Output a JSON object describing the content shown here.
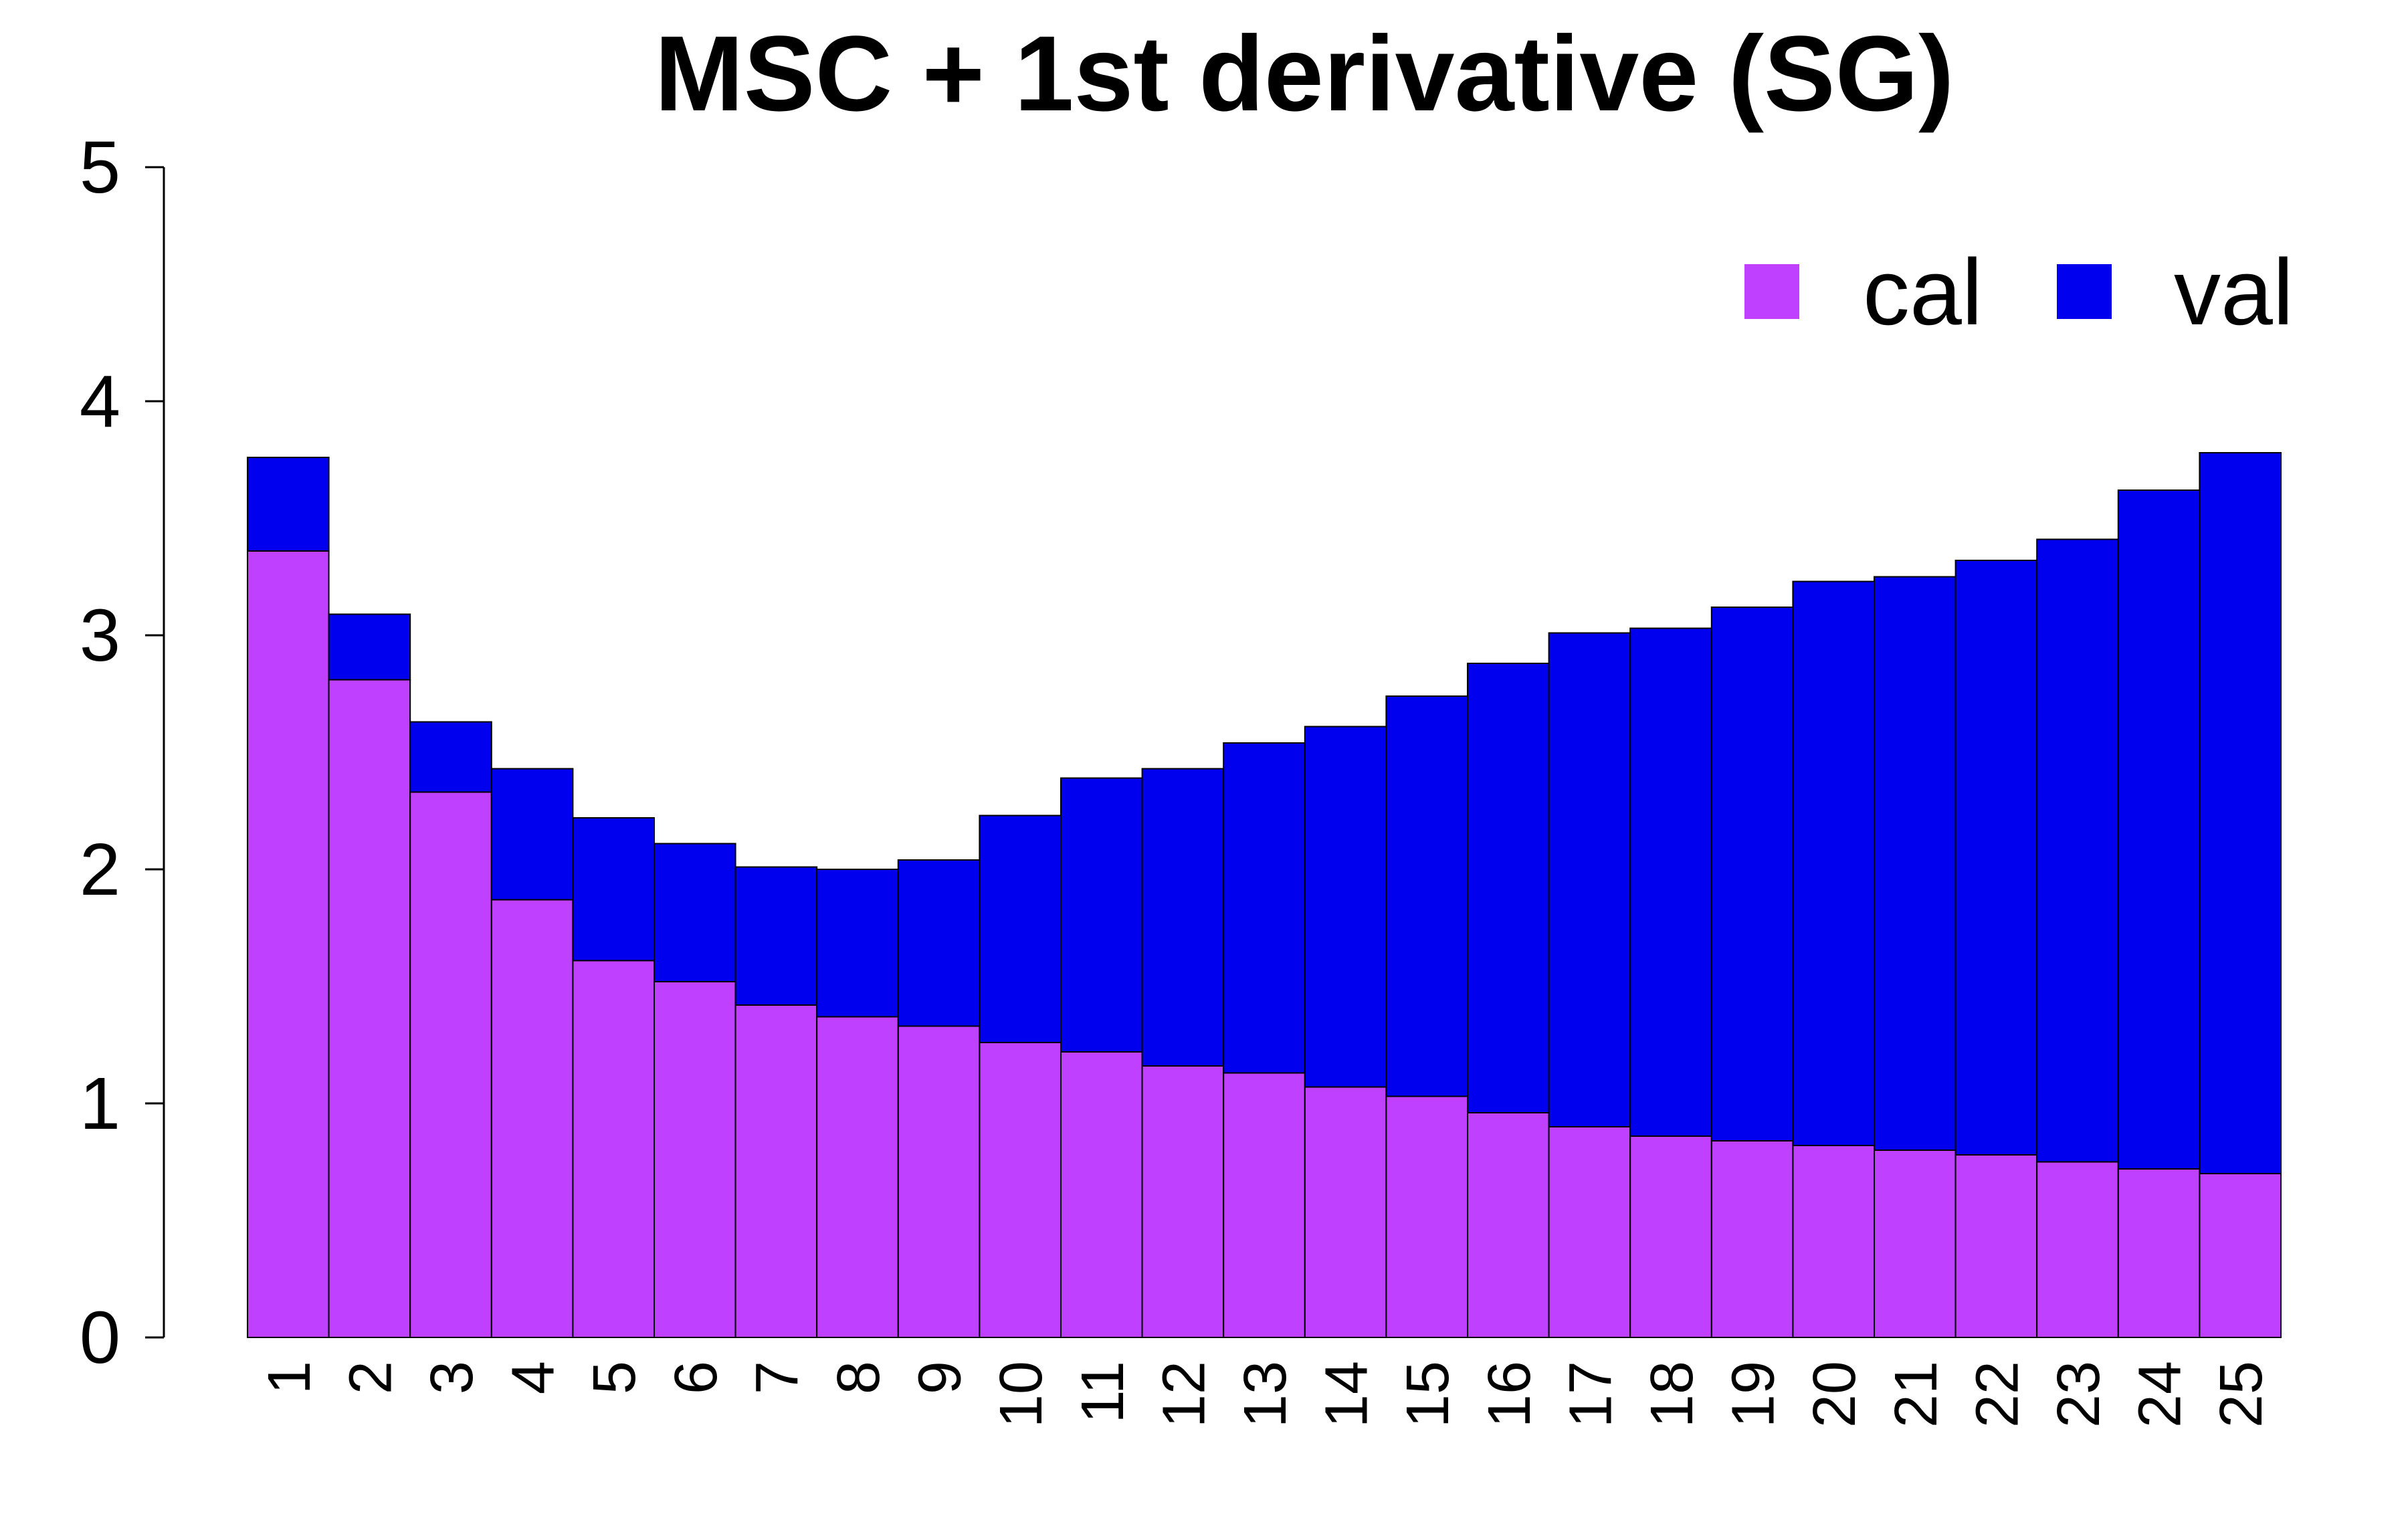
{
  "chart_data": {
    "type": "bar",
    "stacked": true,
    "title": "MSC + 1st derivative (SG)",
    "xlabel": "",
    "ylabel": "",
    "ylim": [
      0,
      5
    ],
    "yticks": [
      0,
      1,
      2,
      3,
      4,
      5
    ],
    "grid": false,
    "legend_position": "top-right",
    "categories": [
      "1",
      "2",
      "3",
      "4",
      "5",
      "6",
      "7",
      "8",
      "9",
      "10",
      "11",
      "12",
      "13",
      "14",
      "15",
      "16",
      "17",
      "18",
      "19",
      "20",
      "21",
      "22",
      "23",
      "24",
      "25"
    ],
    "series": [
      {
        "name": "cal",
        "color": "#BF40FF",
        "values": [
          3.36,
          2.81,
          2.33,
          1.87,
          1.61,
          1.52,
          1.42,
          1.37,
          1.33,
          1.26,
          1.22,
          1.16,
          1.13,
          1.07,
          1.03,
          0.96,
          0.9,
          0.86,
          0.84,
          0.82,
          0.8,
          0.78,
          0.75,
          0.72,
          0.7
        ]
      },
      {
        "name": "val",
        "color": "#0000EE",
        "values": [
          0.4,
          0.28,
          0.3,
          0.56,
          0.61,
          0.59,
          0.59,
          0.63,
          0.71,
          0.97,
          1.17,
          1.27,
          1.41,
          1.54,
          1.71,
          1.92,
          2.11,
          2.17,
          2.28,
          2.41,
          2.45,
          2.54,
          2.66,
          2.9,
          3.08
        ]
      }
    ],
    "totals": [
      3.76,
      3.09,
      2.63,
      2.43,
      2.22,
      2.11,
      2.01,
      2.0,
      2.04,
      2.23,
      2.39,
      2.43,
      2.54,
      2.61,
      2.74,
      2.88,
      3.01,
      3.03,
      3.12,
      3.23,
      3.25,
      3.32,
      3.41,
      3.62,
      3.78
    ]
  }
}
